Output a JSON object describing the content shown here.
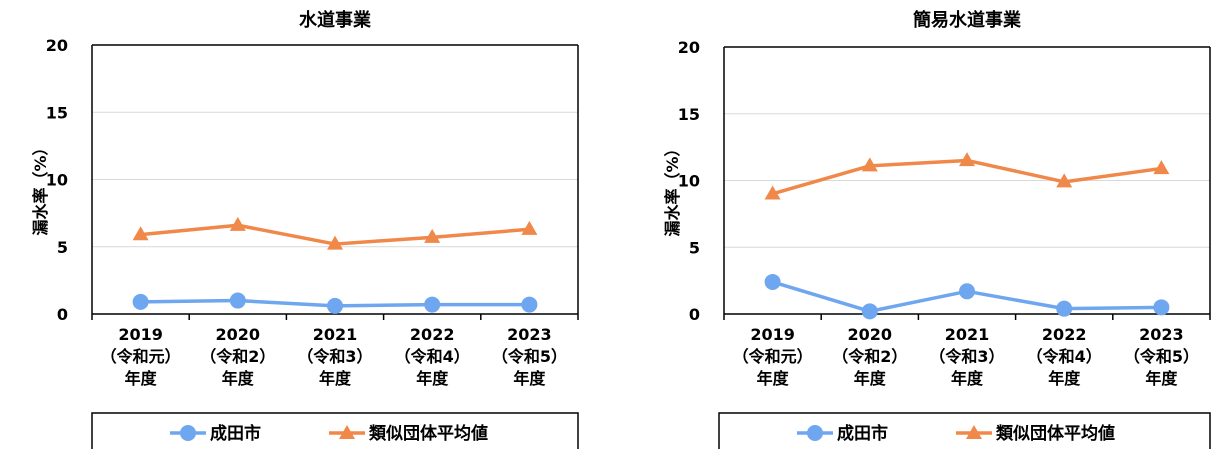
{
  "chart_data": [
    {
      "type": "line",
      "title": "水道事業",
      "ylabel": "漏水率（%）",
      "ylim": [
        0,
        20
      ],
      "yticks": [
        0,
        5,
        10,
        15,
        20
      ],
      "categories": [
        [
          "2019",
          "（令和元）",
          "年度"
        ],
        [
          "2020",
          "（令和2）",
          "年度"
        ],
        [
          "2021",
          "（令和3）",
          "年度"
        ],
        [
          "2022",
          "（令和4）",
          "年度"
        ],
        [
          "2023",
          "（令和5）",
          "年度"
        ]
      ],
      "series": [
        {
          "name": "成田市",
          "marker": "circle",
          "color": "#6ea6f0",
          "values": [
            0.9,
            1.0,
            0.6,
            0.7,
            0.7
          ]
        },
        {
          "name": "類似団体平均値",
          "marker": "triangle",
          "color": "#f0884a",
          "values": [
            5.9,
            6.6,
            5.2,
            5.7,
            6.3
          ]
        }
      ],
      "grid": true,
      "legend_position": "bottom"
    },
    {
      "type": "line",
      "title": "簡易水道事業",
      "ylabel": "漏水率（%）",
      "ylim": [
        0,
        20
      ],
      "yticks": [
        0,
        5,
        10,
        15,
        20
      ],
      "categories": [
        [
          "2019",
          "（令和元）",
          "年度"
        ],
        [
          "2020",
          "（令和2）",
          "年度"
        ],
        [
          "2021",
          "（令和3）",
          "年度"
        ],
        [
          "2022",
          "（令和4）",
          "年度"
        ],
        [
          "2023",
          "（令和5）",
          "年度"
        ]
      ],
      "series": [
        {
          "name": "成田市",
          "marker": "circle",
          "color": "#6ea6f0",
          "values": [
            2.4,
            0.2,
            1.7,
            0.4,
            0.5
          ]
        },
        {
          "name": "類似団体平均値",
          "marker": "triangle",
          "color": "#f0884a",
          "values": [
            9.0,
            11.1,
            11.5,
            9.9,
            10.9
          ]
        }
      ],
      "grid": true,
      "legend_position": "bottom"
    }
  ]
}
